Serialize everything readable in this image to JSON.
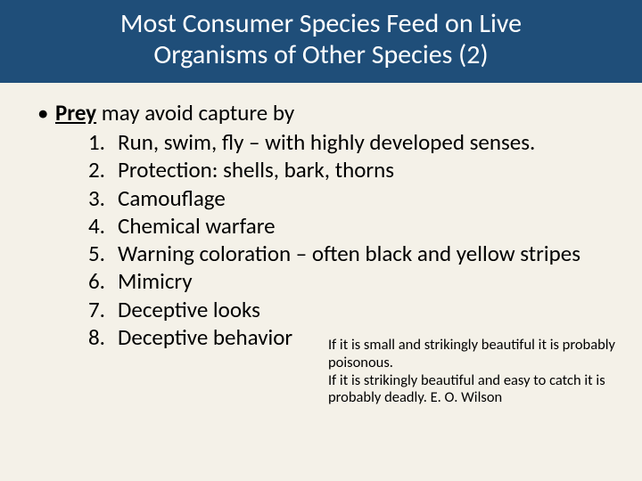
{
  "title": {
    "line1": "Most Consumer Species Feed on Live",
    "line2": "Organisms of Other Species (2)"
  },
  "bullet": {
    "bold_word": "Prey",
    "rest": " may avoid capture by"
  },
  "items": [
    "Run, swim, fly – with highly developed senses.",
    "Protection: shells, bark, thorns",
    "Camouflage",
    "Chemical warfare",
    "Warning coloration – often black and yellow stripes",
    "Mimicry",
    "Deceptive looks",
    "Deceptive behavior"
  ],
  "quote": {
    "line1": "If it is small and strikingly beautiful it is probably poisonous.",
    "line2": "If it is strikingly beautiful and easy to catch it is probably deadly.   E. O. Wilson"
  },
  "colors": {
    "title_bg": "#1f4e79",
    "title_text": "#ffffff",
    "body_bg": "#f4f1e8",
    "body_text": "#000000"
  }
}
